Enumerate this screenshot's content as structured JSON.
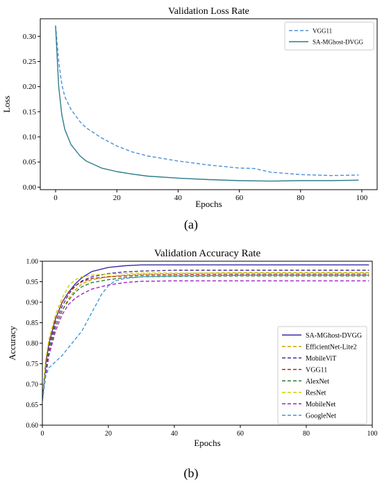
{
  "chart_data": [
    {
      "type": "line",
      "title": "Validation Loss Rate",
      "xlabel": "Epochs",
      "ylabel": "Loss",
      "xlim": [
        -5,
        105
      ],
      "ylim": [
        -0.005,
        0.335
      ],
      "xticks": [
        0,
        20,
        40,
        60,
        80,
        100
      ],
      "yticks": [
        0.0,
        0.05,
        0.1,
        0.15,
        0.2,
        0.25,
        0.3
      ],
      "ytick_labels": [
        "0.00",
        "0.05",
        "0.10",
        "0.15",
        "0.20",
        "0.25",
        "0.30"
      ],
      "legend_position": "top-right",
      "grid": false,
      "series": [
        {
          "name": "VGG11",
          "color": "#4a90d9",
          "dash": "dashed",
          "x": [
            0,
            1,
            2,
            3,
            5,
            8,
            10,
            15,
            20,
            25,
            30,
            40,
            50,
            60,
            65,
            70,
            80,
            90,
            99
          ],
          "y": [
            0.322,
            0.25,
            0.205,
            0.18,
            0.155,
            0.13,
            0.118,
            0.098,
            0.082,
            0.07,
            0.062,
            0.052,
            0.044,
            0.038,
            0.037,
            0.03,
            0.025,
            0.023,
            0.024
          ]
        },
        {
          "name": "SA-MGhost-DVGG",
          "color": "#2e7b8e",
          "dash": "solid",
          "x": [
            0,
            1,
            2,
            3,
            5,
            8,
            10,
            15,
            20,
            25,
            30,
            40,
            50,
            60,
            70,
            80,
            90,
            99
          ],
          "y": [
            0.32,
            0.2,
            0.145,
            0.115,
            0.085,
            0.062,
            0.052,
            0.038,
            0.031,
            0.026,
            0.022,
            0.018,
            0.015,
            0.013,
            0.012,
            0.013,
            0.013,
            0.014
          ]
        }
      ],
      "caption": "(a)"
    },
    {
      "type": "line",
      "title": "Validation Accuracy Rate",
      "xlabel": "Epochs",
      "ylabel": "Accuracy",
      "xlim": [
        0,
        100
      ],
      "ylim": [
        0.6,
        1.0
      ],
      "xticks": [
        0,
        20,
        40,
        60,
        80,
        100
      ],
      "yticks": [
        0.6,
        0.65,
        0.7,
        0.75,
        0.8,
        0.85,
        0.9,
        0.95,
        1.0
      ],
      "ytick_labels": [
        "0.60",
        "0.65",
        "0.70",
        "0.75",
        "0.80",
        "0.85",
        "0.90",
        "0.95",
        "1.00"
      ],
      "legend_position": "bottom-right",
      "grid": false,
      "series": [
        {
          "name": "SA-MGhost-DVGG",
          "color": "#3a2ea6",
          "dash": "solid",
          "x": [
            0,
            1,
            2,
            4,
            6,
            8,
            10,
            12,
            15,
            20,
            25,
            30,
            40,
            60,
            80,
            99
          ],
          "y": [
            0.66,
            0.75,
            0.8,
            0.86,
            0.9,
            0.925,
            0.945,
            0.96,
            0.975,
            0.985,
            0.989,
            0.991,
            0.991,
            0.991,
            0.991,
            0.991
          ]
        },
        {
          "name": "EfficientNet-Lite2",
          "color": "#c8a400",
          "dash": "dashed",
          "x": [
            0,
            1,
            2,
            4,
            6,
            8,
            10,
            12,
            15,
            20,
            25,
            30,
            40,
            60,
            80,
            99
          ],
          "y": [
            0.66,
            0.73,
            0.78,
            0.84,
            0.88,
            0.91,
            0.93,
            0.945,
            0.955,
            0.962,
            0.966,
            0.968,
            0.97,
            0.972,
            0.972,
            0.972
          ]
        },
        {
          "name": "MobileViT",
          "color": "#4a2f9e",
          "dash": "dashed",
          "x": [
            0,
            1,
            2,
            4,
            6,
            8,
            10,
            12,
            15,
            20,
            25,
            30,
            40,
            60,
            80,
            99
          ],
          "y": [
            0.66,
            0.74,
            0.79,
            0.85,
            0.89,
            0.92,
            0.94,
            0.952,
            0.962,
            0.97,
            0.974,
            0.976,
            0.978,
            0.978,
            0.978,
            0.978
          ]
        },
        {
          "name": "VGG11",
          "color": "#b02a1a",
          "dash": "dashed",
          "x": [
            0,
            1,
            2,
            4,
            6,
            8,
            10,
            12,
            15,
            20,
            25,
            30,
            40,
            60,
            80,
            99
          ],
          "y": [
            0.66,
            0.75,
            0.8,
            0.86,
            0.9,
            0.925,
            0.94,
            0.95,
            0.958,
            0.962,
            0.964,
            0.966,
            0.967,
            0.968,
            0.968,
            0.968
          ]
        },
        {
          "name": "AlexNet",
          "color": "#2e7d32",
          "dash": "dashed",
          "x": [
            0,
            1,
            2,
            4,
            6,
            8,
            10,
            12,
            15,
            20,
            25,
            30,
            40,
            60,
            80,
            99
          ],
          "y": [
            0.66,
            0.73,
            0.78,
            0.84,
            0.88,
            0.905,
            0.925,
            0.938,
            0.948,
            0.955,
            0.96,
            0.962,
            0.963,
            0.964,
            0.964,
            0.964
          ]
        },
        {
          "name": "ResNet",
          "color": "#c6d200",
          "dash": "dashed",
          "x": [
            0,
            1,
            2,
            4,
            6,
            8,
            10,
            12,
            15,
            20,
            25,
            30,
            40,
            60,
            80,
            99
          ],
          "y": [
            0.66,
            0.76,
            0.81,
            0.87,
            0.91,
            0.94,
            0.955,
            0.962,
            0.966,
            0.969,
            0.97,
            0.971,
            0.971,
            0.971,
            0.971,
            0.971
          ]
        },
        {
          "name": "MobileNet",
          "color": "#a020c8",
          "dash": "dashed",
          "x": [
            0,
            1,
            2,
            4,
            6,
            8,
            10,
            12,
            15,
            20,
            25,
            30,
            40,
            60,
            80,
            99
          ],
          "y": [
            0.66,
            0.72,
            0.77,
            0.83,
            0.87,
            0.895,
            0.91,
            0.92,
            0.932,
            0.942,
            0.948,
            0.951,
            0.952,
            0.952,
            0.952,
            0.952
          ]
        },
        {
          "name": "GoogleNet",
          "color": "#3a9ad9",
          "dash": "dashed",
          "x": [
            0,
            1,
            2,
            4,
            6,
            8,
            10,
            12,
            14,
            16,
            18,
            20,
            22,
            25,
            30,
            40,
            60,
            80,
            99
          ],
          "y": [
            0.66,
            0.72,
            0.74,
            0.755,
            0.77,
            0.79,
            0.81,
            0.83,
            0.86,
            0.89,
            0.92,
            0.94,
            0.952,
            0.958,
            0.962,
            0.964,
            0.966,
            0.966,
            0.966
          ]
        }
      ],
      "caption": "(b)"
    }
  ]
}
